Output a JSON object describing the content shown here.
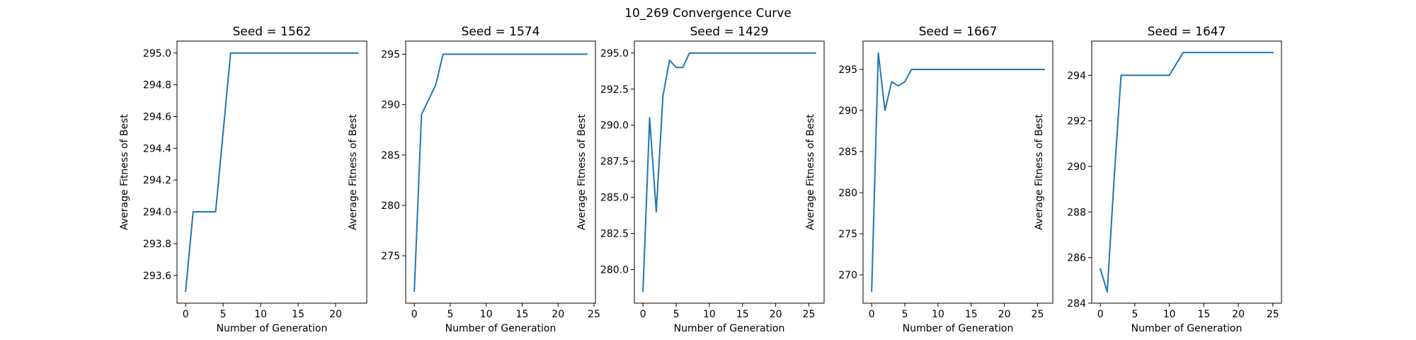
{
  "figure": {
    "suptitle": "10_269 Convergence Curve"
  },
  "style": {
    "line_color": "#1f77b4",
    "axis_color": "#000000",
    "background": "#ffffff"
  },
  "chart_data": [
    {
      "type": "line",
      "title": "Seed = 1562",
      "xlabel": "Number of Generation",
      "ylabel": "Average Fitness of Best",
      "xlim": [
        -1.15,
        24.15
      ],
      "ylim": [
        293.425,
        295.075
      ],
      "xticks": [
        0,
        5,
        10,
        15,
        20
      ],
      "yticks": [
        293.6,
        293.8,
        294.0,
        294.2,
        294.4,
        294.6,
        294.8,
        295.0
      ],
      "ytick_labels": [
        "293.6",
        "293.8",
        "294.0",
        "294.2",
        "294.4",
        "294.6",
        "294.8",
        "295.0"
      ],
      "x": [
        0,
        1,
        2,
        3,
        4,
        5,
        6,
        7,
        8,
        9,
        10,
        11,
        12,
        13,
        14,
        15,
        16,
        17,
        18,
        19,
        20,
        21,
        22,
        23
      ],
      "y": [
        293.5,
        294.0,
        294.0,
        294.0,
        294.0,
        294.5,
        295.0,
        295.0,
        295.0,
        295.0,
        295.0,
        295.0,
        295.0,
        295.0,
        295.0,
        295.0,
        295.0,
        295.0,
        295.0,
        295.0,
        295.0,
        295.0,
        295.0,
        295.0
      ]
    },
    {
      "type": "line",
      "title": "Seed = 1574",
      "xlabel": "Number of Generation",
      "ylabel": "Average Fitness of Best",
      "xlim": [
        -1.2,
        25.2
      ],
      "ylim": [
        270.3,
        296.3
      ],
      "xticks": [
        0,
        5,
        10,
        15,
        20,
        25
      ],
      "yticks": [
        275,
        280,
        285,
        290,
        295
      ],
      "ytick_labels": [
        "275",
        "280",
        "285",
        "290",
        "295"
      ],
      "x": [
        0,
        1,
        2,
        3,
        4,
        5,
        6,
        7,
        8,
        9,
        10,
        11,
        12,
        13,
        14,
        15,
        16,
        17,
        18,
        19,
        20,
        21,
        22,
        23,
        24
      ],
      "y": [
        271.5,
        289.0,
        290.5,
        292.0,
        295.0,
        295.0,
        295.0,
        295.0,
        295.0,
        295.0,
        295.0,
        295.0,
        295.0,
        295.0,
        295.0,
        295.0,
        295.0,
        295.0,
        295.0,
        295.0,
        295.0,
        295.0,
        295.0,
        295.0,
        295.0
      ]
    },
    {
      "type": "line",
      "title": "Seed = 1429",
      "xlabel": "Number of Generation",
      "ylabel": "Average Fitness of Best",
      "xlim": [
        -1.3,
        27.3
      ],
      "ylim": [
        277.675,
        295.825
      ],
      "xticks": [
        0,
        5,
        10,
        15,
        20,
        25
      ],
      "yticks": [
        280.0,
        282.5,
        285.0,
        287.5,
        290.0,
        292.5,
        295.0
      ],
      "ytick_labels": [
        "280.0",
        "282.5",
        "285.0",
        "287.5",
        "290.0",
        "292.5",
        "295.0"
      ],
      "x": [
        0,
        1,
        2,
        3,
        4,
        5,
        6,
        7,
        8,
        9,
        10,
        11,
        12,
        13,
        14,
        15,
        16,
        17,
        18,
        19,
        20,
        21,
        22,
        23,
        24,
        25,
        26
      ],
      "y": [
        278.5,
        290.5,
        284.0,
        292.0,
        294.5,
        294.0,
        294.0,
        295.0,
        295.0,
        295.0,
        295.0,
        295.0,
        295.0,
        295.0,
        295.0,
        295.0,
        295.0,
        295.0,
        295.0,
        295.0,
        295.0,
        295.0,
        295.0,
        295.0,
        295.0,
        295.0,
        295.0
      ]
    },
    {
      "type": "line",
      "title": "Seed = 1667",
      "xlabel": "Number of Generation",
      "ylabel": "Average Fitness of Best",
      "xlim": [
        -1.3,
        27.3
      ],
      "ylim": [
        266.55,
        298.45
      ],
      "xticks": [
        0,
        5,
        10,
        15,
        20,
        25
      ],
      "yticks": [
        270,
        275,
        280,
        285,
        290,
        295
      ],
      "ytick_labels": [
        "270",
        "275",
        "280",
        "285",
        "290",
        "295"
      ],
      "x": [
        0,
        1,
        2,
        3,
        4,
        5,
        6,
        7,
        8,
        9,
        10,
        11,
        12,
        13,
        14,
        15,
        16,
        17,
        18,
        19,
        20,
        21,
        22,
        23,
        24,
        25,
        26
      ],
      "y": [
        268.0,
        297.0,
        290.0,
        293.5,
        293.0,
        293.5,
        295.0,
        295.0,
        295.0,
        295.0,
        295.0,
        295.0,
        295.0,
        295.0,
        295.0,
        295.0,
        295.0,
        295.0,
        295.0,
        295.0,
        295.0,
        295.0,
        295.0,
        295.0,
        295.0,
        295.0,
        295.0
      ]
    },
    {
      "type": "line",
      "title": "Seed = 1647",
      "xlabel": "Number of Generation",
      "ylabel": "Average Fitness of Best",
      "xlim": [
        -1.25,
        26.25
      ],
      "ylim": [
        284.0,
        295.5
      ],
      "xticks": [
        0,
        5,
        10,
        15,
        20,
        25
      ],
      "yticks": [
        284,
        286,
        288,
        290,
        292,
        294
      ],
      "ytick_labels": [
        "284",
        "286",
        "288",
        "290",
        "292",
        "294"
      ],
      "x": [
        0,
        1,
        2,
        3,
        4,
        5,
        6,
        7,
        8,
        9,
        10,
        11,
        12,
        13,
        14,
        15,
        16,
        17,
        18,
        19,
        20,
        21,
        22,
        23,
        24,
        25
      ],
      "y": [
        285.5,
        284.5,
        289.5,
        294.0,
        294.0,
        294.0,
        294.0,
        294.0,
        294.0,
        294.0,
        294.0,
        294.5,
        295.0,
        295.0,
        295.0,
        295.0,
        295.0,
        295.0,
        295.0,
        295.0,
        295.0,
        295.0,
        295.0,
        295.0,
        295.0,
        295.0
      ]
    }
  ]
}
